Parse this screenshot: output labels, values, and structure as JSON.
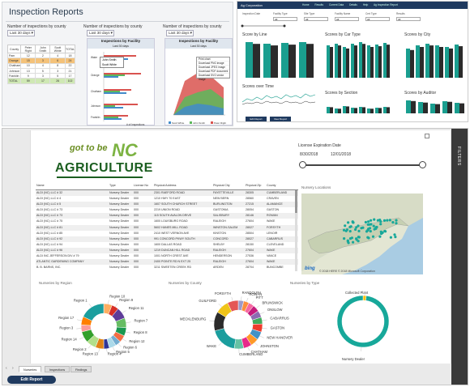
{
  "inspection_reports": {
    "title": "Inspection Reports",
    "county_panel": {
      "label": "Number of inspections by county",
      "dropdown": "Last 30 days",
      "headers": [
        "County",
        "Peter Right",
        "John Smith",
        "Scott White",
        "TOTAL"
      ],
      "rows": [
        {
          "cells": [
            "Pam",
            "12",
            "2",
            "4",
            "18"
          ],
          "color": "#ffffff"
        },
        {
          "cells": [
            "Orange",
            "15",
            "3",
            "6",
            "24"
          ],
          "color": "#f4c27a"
        },
        {
          "cells": [
            "Chatham",
            "10",
            "4",
            "8",
            "22"
          ],
          "color": "#ffffff"
        },
        {
          "cells": [
            "Johnson",
            "13",
            "5",
            "3",
            "21"
          ],
          "color": "#ffffff"
        },
        {
          "cells": [
            "Franklin",
            "9",
            "3",
            "5",
            "17"
          ],
          "color": "#ffffff"
        },
        {
          "cells": [
            "TOTAL",
            "59",
            "17",
            "26",
            "102"
          ],
          "color": "#cfe8b4"
        }
      ]
    },
    "facility_bar_panel": {
      "label": "Number of inspections by county",
      "dropdown": "Last 30 days",
      "chart_title": "Inspections by Facility",
      "chart_subtitle": "Last 30 days",
      "xlabel": "# of Inspections",
      "popup": [
        "John Smith",
        "Scott White"
      ]
    },
    "facility_area_panel": {
      "label": "Number of inspections by county",
      "dropdown": "Last 30 days",
      "chart_title": "Inspections by Facility",
      "chart_subtitle": "Last 30 days",
      "menu": [
        "Print chart",
        "Download PNG image",
        "Download JPEG image",
        "Download PDF document",
        "Download SVG vector image"
      ],
      "legend": [
        "Scott White",
        "John Smith",
        "Peter Right"
      ]
    }
  },
  "dashboard": {
    "app_title": "Ag Corporation",
    "nav": [
      "Home",
      "Results",
      "Current Data",
      "Details",
      "Help",
      "Ag Inspection Report"
    ],
    "filters": [
      {
        "label": "Inspection Date",
        "value": ""
      },
      {
        "label": "Facility Type",
        "value": "All"
      },
      {
        "label": "Site Type",
        "value": "All"
      },
      {
        "label": "Facility Name",
        "value": "All"
      },
      {
        "label": "Cert Type",
        "value": "All"
      },
      {
        "label": "Results",
        "value": "All"
      }
    ],
    "chart_titles": [
      "Score by Line",
      "Scores by Car Type",
      "Scores by City",
      "Scores over Time",
      "Scores by Section",
      "Scores by Auditor"
    ],
    "buttons": [
      "Edit Report",
      "View Report"
    ]
  },
  "report": {
    "logo": {
      "got_to_be": "got to be",
      "nc": "NC",
      "agriculture": "AGRICULTURE"
    },
    "filters_label": "FILTERS",
    "date_filter": {
      "label": "License Expiration Date",
      "start": "8/30/2018",
      "end": "12/01/2018"
    },
    "table": {
      "headers": [
        "Name",
        "Type",
        "License No",
        "Physical Address",
        "Physical City",
        "Physical Zip",
        "County"
      ],
      "rows": [
        [
          "ALDI (NC) LLC # 32",
          "Nursery Dealer",
          "000",
          "2301 RAEFORD ROAD",
          "FAYETTEVILLE",
          "28305",
          "CUMBERLAND"
        ],
        [
          "ALDI (NC) LLC # 4",
          "Nursery Dealer",
          "000",
          "1210 HWY 70 EAST",
          "NEW BERN",
          "28560",
          "CRAVEN"
        ],
        [
          "ALDI (NC) LLC # 5",
          "Nursery Dealer",
          "000",
          "1607 SOUTH CHURCH STREET",
          "BURLINGTON",
          "27215",
          "ALAMANCE"
        ],
        [
          "ALDI (NC) LLC # 73",
          "Nursery Dealer",
          "000",
          "2219 UNION ROAD",
          "GASTONIA",
          "28054",
          "GASTON"
        ],
        [
          "ALDI (NC) LLC # 73",
          "Nursery Dealer",
          "000",
          "115 SOUTH AVALON DRIVE",
          "SALISBURY",
          "28146",
          "ROWAN"
        ],
        [
          "ALDI (NC) LLC # 75",
          "Nursery Dealer",
          "000",
          "1600 LOUISBURG ROAD",
          "RALEIGH",
          "27604",
          "WAKE"
        ],
        [
          "ALDI (NC) LLC # 81",
          "Nursery Dealer",
          "000",
          "5602 HANES MILL ROAD",
          "WINSTON-SALEM",
          "28027",
          "FORSYTH"
        ],
        [
          "ALDI (NC) LLC # 85",
          "Nursery Dealer",
          "000",
          "2410 WEST VERNON AVE",
          "KINSTON",
          "28504",
          "LENOIR"
        ],
        [
          "ALDI (NC) LLC # 92",
          "Nursery Dealer",
          "000",
          "991 CONCORD PKWY SOUTH",
          "CONCORD",
          "28027",
          "CABARRUS"
        ],
        [
          "ALDI (NC) LLC # 94",
          "Nursery Dealer",
          "000",
          "1600 DALLAS ROAD",
          "SHELBY",
          "28150",
          "CLEVELAND"
        ],
        [
          "ALDI (NC) LLC # 96",
          "Nursery Dealer",
          "000",
          "1219 DUNCAN HILL ROAD",
          "RALEIGH",
          "27604",
          "WAKE"
        ],
        [
          "ALDI INC JEFFERSON DIV # 79",
          "Nursery Dealer",
          "000",
          "1001 NORTH CREST AVE",
          "HENDERSON",
          "27536",
          "VANCE"
        ],
        [
          "ATLANTIC GARDENING COMPANY",
          "Nursery Dealer",
          "000",
          "2400 POINTE RD N EXT 25",
          "RALEIGH",
          "27604",
          "WAKE"
        ],
        [
          "B. B. BARNS, INC.",
          "Nursery Dealer",
          "000",
          "3211 SWEETEN CREEK RD",
          "ARDEN",
          "28704",
          "BUNCOMBE"
        ]
      ]
    },
    "map": {
      "title": "Nursery Locations",
      "footer": "© 2018 HERE © 2018 Microsoft Corporation",
      "bing": "bing"
    },
    "donuts": [
      {
        "title": "Nurseries by Region",
        "labels": [
          "Region 10",
          "Region 9",
          "Region 11",
          "Region 7",
          "Region 8",
          "Region 12",
          "Region 6",
          "Region 5",
          "Region 4",
          "Region 13",
          "Region 2",
          "Region 14",
          "Region 3",
          "Region 17",
          "Region 1"
        ],
        "values": [
          6,
          5,
          8,
          7,
          6,
          5,
          4,
          5,
          4,
          6,
          7,
          8,
          5,
          6,
          18
        ],
        "colors": [
          "#fdae61",
          "#d73027",
          "#5e3c99",
          "#66bd63",
          "#1a9850",
          "#f46d43",
          "#74add1",
          "#abd9e9",
          "#313695",
          "#e08214",
          "#b2df8a",
          "#33a02c",
          "#fb9a99",
          "#ff7f00",
          "#1b9e9e"
        ]
      },
      {
        "title": "Nurseries by County",
        "labels": [
          "RANDOLPH",
          "ROWAN",
          "PITT",
          "BRUNSWICK",
          "ONSLOW",
          "CABARRUS",
          "GASTON",
          "NEW HANOVER",
          "JOHNSTON",
          "CHATHAM",
          "CUMBERLAND",
          "WAKE",
          "MECKLENBURG",
          "GUILFORD",
          "FORSYTH"
        ],
        "values": [
          4,
          4,
          4,
          5,
          5,
          5,
          6,
          6,
          6,
          6,
          7,
          20,
          14,
          10,
          8
        ],
        "colors": [
          "#9e9ac8",
          "#fd8d3c",
          "#f768a1",
          "#c51b7d",
          "#8c6bb1",
          "#41ab5d",
          "#ef3b2c",
          "#4292c6",
          "#fe9929",
          "#e7298a",
          "#66c2a4",
          "#1b9e9e",
          "#2b2b2b",
          "#f0c419",
          "#e45756"
        ]
      },
      {
        "title": "Nurseries by Type",
        "labels": [
          "Collected Plant",
          "Nursery Dealer"
        ],
        "values": [
          2,
          98
        ],
        "colors": [
          "#ffc107",
          "#17a89a"
        ]
      }
    ],
    "tabs": [
      "Nurseries",
      "Inspections",
      "Findings"
    ],
    "edit_button": "Edit Report"
  }
}
